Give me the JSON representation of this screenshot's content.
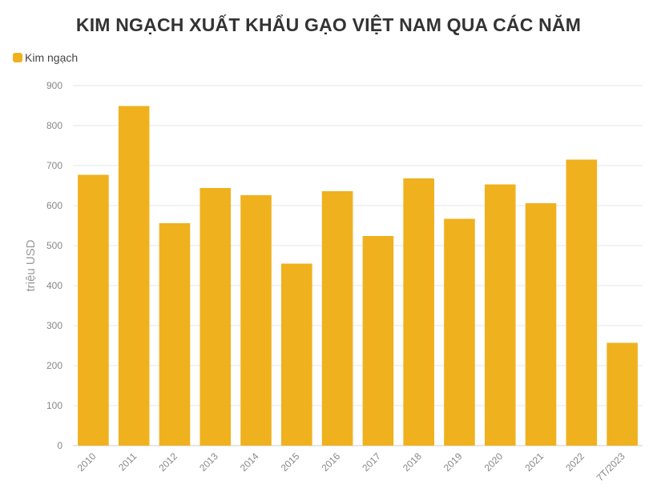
{
  "chart_data": {
    "type": "bar",
    "title": "KIM NGẠCH XUẤT KHẨU GẠO VIỆT NAM QUA CÁC NĂM",
    "ylabel": "triệu USD",
    "xlabel": "",
    "series": [
      {
        "name": "Kim ngạch",
        "color": "#f0b11e",
        "values": [
          677,
          849,
          556,
          644,
          626,
          455,
          636,
          524,
          668,
          567,
          653,
          606,
          715,
          257
        ]
      }
    ],
    "categories": [
      "2010",
      "2011",
      "2012",
      "2013",
      "2014",
      "2015",
      "2016",
      "2017",
      "2018",
      "2019",
      "2020",
      "2021",
      "2022",
      "7T/2023"
    ],
    "ylim": [
      0,
      900
    ],
    "yticks": [
      "0",
      "100",
      "200",
      "300",
      "400",
      "500",
      "600",
      "700",
      "800",
      "900"
    ],
    "grid": true,
    "legend_position": "top-left"
  }
}
